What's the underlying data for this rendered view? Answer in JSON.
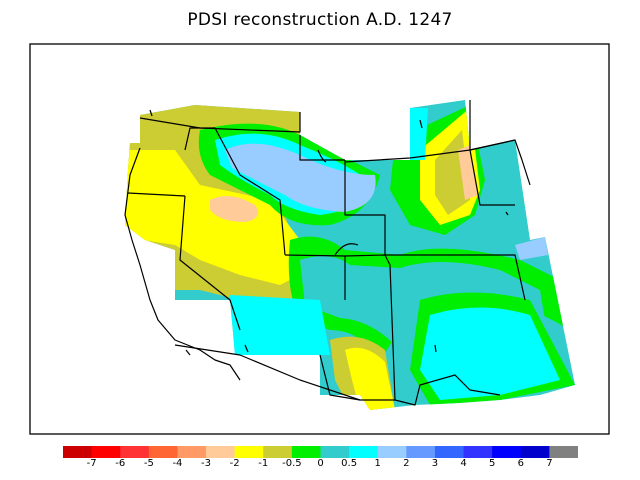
{
  "title": "PDSI reconstruction A.D. 1247",
  "colorbar": {
    "colors": [
      "#cc0000",
      "#ff0000",
      "#ff3333",
      "#ff6633",
      "#ff9966",
      "#ffcc99",
      "#ffff00",
      "#cccc33",
      "#00ee00",
      "#33cccc",
      "#00ffff",
      "#99ccff",
      "#6699ff",
      "#3366ff",
      "#3333ff",
      "#0000ff",
      "#0000cc",
      "#808080"
    ],
    "ticks": [
      "-7",
      "-6",
      "-5",
      "-4",
      "-3",
      "-2",
      "-1",
      "-0.5",
      "0",
      "0.5",
      "1",
      "2",
      "3",
      "4",
      "5",
      "6",
      "7"
    ]
  }
}
